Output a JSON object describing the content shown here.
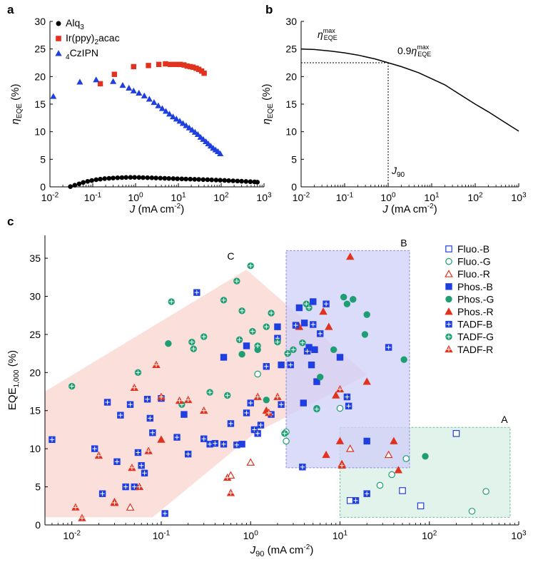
{
  "figure": {
    "panel_labels": [
      "a",
      "b",
      "c"
    ]
  },
  "colors": {
    "blue": "#1f3fe0",
    "red": "#e0321e",
    "green": "#1e9e73",
    "black": "#000000",
    "region_a": "#d9f0e6",
    "region_a_border": "#6fbf9a",
    "region_b": "#cfcff8",
    "region_b_border": "#8a8ae6",
    "region_c": "#f9d9d5"
  },
  "chart_data": [
    {
      "panel": "a",
      "type": "scatter",
      "xscale": "log",
      "xlim": [
        0.01,
        1000
      ],
      "ylim": [
        0,
        30
      ],
      "xticks": [
        "10^-2",
        "10^-1",
        "10^0",
        "10^1",
        "10^2",
        "10^3"
      ],
      "yticks": [
        0,
        5,
        10,
        15,
        20,
        25,
        30
      ],
      "xlabel": "J (mA cm^-2)",
      "ylabel": "η_EQE (%)",
      "legend_position": "top-left",
      "series": [
        {
          "name": "Alq3",
          "marker": "circle",
          "color": "#000000",
          "x": [
            0.03,
            0.038,
            0.048,
            0.06,
            0.076,
            0.095,
            0.12,
            0.15,
            0.19,
            0.24,
            0.3,
            0.38,
            0.48,
            0.6,
            0.76,
            0.95,
            1.2,
            1.5,
            1.9,
            2.4,
            3.0,
            3.8,
            4.8,
            6.0,
            7.6,
            9.5,
            12,
            15,
            19,
            24,
            30,
            38,
            48,
            60,
            76,
            95,
            120,
            150,
            190,
            240,
            300,
            380,
            480,
            600,
            700
          ],
          "y": [
            0.05,
            0.3,
            0.55,
            0.8,
            1.0,
            1.15,
            1.3,
            1.4,
            1.5,
            1.55,
            1.6,
            1.65,
            1.68,
            1.7,
            1.72,
            1.72,
            1.7,
            1.68,
            1.66,
            1.64,
            1.6,
            1.58,
            1.55,
            1.52,
            1.5,
            1.47,
            1.45,
            1.42,
            1.4,
            1.37,
            1.35,
            1.32,
            1.3,
            1.27,
            1.24,
            1.2,
            1.17,
            1.13,
            1.1,
            1.06,
            1.02,
            0.98,
            0.94,
            0.9,
            0.85
          ]
        },
        {
          "name": "Ir(ppy)2acac",
          "marker": "square",
          "color": "#e0321e",
          "x": [
            0.15,
            0.32,
            0.9,
            2.0,
            3.5,
            5.0,
            6.5,
            8.5,
            11,
            13.5,
            16,
            19,
            22,
            26,
            30,
            35,
            40
          ],
          "y": [
            18.7,
            20.4,
            21.8,
            22.0,
            22.2,
            22.3,
            22.2,
            22.2,
            22.2,
            22.1,
            21.9,
            21.8,
            21.7,
            21.5,
            21.3,
            21.0,
            20.6
          ]
        },
        {
          "name": "4CzIPN",
          "marker": "triangle",
          "color": "#1f3fe0",
          "x": [
            0.012,
            0.05,
            0.12,
            0.3,
            0.5,
            0.7,
            0.9,
            1.2,
            1.6,
            2.1,
            2.7,
            3.4,
            4.2,
            5.1,
            6.2,
            7.5,
            9.0,
            10.8,
            12.8,
            15.2,
            17.9,
            21.0,
            24.5,
            28.5,
            33,
            38,
            44,
            50,
            57,
            65,
            74,
            84,
            95
          ],
          "y": [
            16.4,
            19.0,
            19.4,
            19.1,
            18.4,
            17.9,
            17.4,
            17.0,
            16.5,
            15.9,
            15.3,
            14.7,
            14.2,
            13.7,
            13.2,
            12.7,
            12.3,
            11.9,
            11.5,
            11.1,
            10.7,
            10.3,
            9.9,
            9.5,
            9.0,
            8.6,
            8.2,
            7.8,
            7.4,
            7.0,
            6.7,
            6.4,
            6.0
          ]
        }
      ]
    },
    {
      "panel": "b",
      "type": "line",
      "xscale": "log",
      "xlim": [
        0.01,
        1000
      ],
      "ylim": [
        0,
        30
      ],
      "xticks": [
        "10^-2",
        "10^-1",
        "10^0",
        "10^1",
        "10^2",
        "10^3"
      ],
      "yticks": [
        0,
        5,
        10,
        15,
        20,
        25,
        30
      ],
      "xlabel": "J (mA cm^-2)",
      "ylabel": "η_EQE (%)",
      "series": [
        {
          "name": "η_EQE",
          "color": "#000000",
          "x": [
            0.01,
            0.02,
            0.05,
            0.1,
            0.2,
            0.5,
            1,
            2,
            5,
            10,
            20,
            50,
            100,
            200,
            500,
            1000
          ],
          "y": [
            25.0,
            24.9,
            24.6,
            24.3,
            23.9,
            23.2,
            22.5,
            21.8,
            20.7,
            19.6,
            18.5,
            16.5,
            15.0,
            13.6,
            11.6,
            10.1
          ]
        }
      ],
      "annotations": {
        "max_label": "η^max_EQE",
        "ninety_label": "0.9η^max_EQE",
        "j90_label": "J90",
        "j90_x": 1.0,
        "ninety_y": 22.5
      }
    },
    {
      "panel": "c",
      "type": "scatter",
      "xscale": "log",
      "xlim": [
        0.005,
        1000
      ],
      "ylim": [
        0,
        38
      ],
      "xticks": [
        "10^-2",
        "10^-1",
        "10^0",
        "10^1",
        "10^2",
        "10^3"
      ],
      "yticks": [
        0,
        5,
        10,
        15,
        20,
        25,
        30,
        35
      ],
      "xlabel": "J90 (mA cm^-2)",
      "ylabel": "EQE1,000 (%)",
      "legend_position": "top-right",
      "regions": [
        {
          "label": "A",
          "x": [
            10,
            800
          ],
          "y": [
            1.0,
            12.8
          ]
        },
        {
          "label": "B",
          "x": [
            2.5,
            60
          ],
          "y": [
            7.5,
            36.0
          ]
        },
        {
          "label": "C",
          "polygon_x": [
            0.005,
            0.005,
            0.9,
            20,
            1.1,
            0.08
          ],
          "polygon_y": [
            1.0,
            17.5,
            33.5,
            19.7,
            12.0,
            1.0
          ]
        }
      ],
      "series": [
        {
          "name": "Fluo.-B",
          "marker": "square-open",
          "color": "#1f3fe0",
          "x": [
            200,
            50,
            80,
            13
          ],
          "y": [
            12.0,
            4.5,
            2.5,
            3.2
          ]
        },
        {
          "name": "Fluo.-G",
          "marker": "circle-open",
          "color": "#1e9e73",
          "x": [
            1.2,
            2.5,
            2.5,
            10,
            28,
            38,
            55,
            300,
            430
          ],
          "y": [
            19.8,
            12.2,
            11.0,
            15.3,
            5.2,
            6.6,
            8.7,
            1.8,
            4.4
          ]
        },
        {
          "name": "Fluo.-R",
          "marker": "triangle-open",
          "color": "#e0321e",
          "x": [
            0.03,
            0.045,
            0.6,
            1.0,
            13,
            35
          ],
          "y": [
            3.0,
            2.3,
            6.5,
            8.2,
            10.0,
            9.2
          ]
        },
        {
          "name": "Phos.-B",
          "marker": "square",
          "color": "#1f3fe0",
          "x": [
            0.18,
            0.5,
            0.8,
            0.9,
            2.0,
            2.2,
            3.5,
            3.9,
            4.0,
            4.5,
            4.8,
            5.0,
            5.2,
            5.5,
            10,
            20
          ],
          "y": [
            14.5,
            22.0,
            10.6,
            23.5,
            26.0,
            21.0,
            28.5,
            16.0,
            26.5,
            23.3,
            21.0,
            29.3,
            23.0,
            18.8,
            22.0,
            11.0
          ]
        },
        {
          "name": "Phos.-G",
          "marker": "circle",
          "color": "#1e9e73",
          "x": [
            0.12,
            0.8,
            1.2,
            1.5,
            5.5,
            6.0,
            8.5,
            11,
            12,
            14,
            19,
            20,
            52,
            90
          ],
          "y": [
            23.8,
            22.4,
            23.0,
            16.4,
            15.3,
            19.4,
            23.0,
            29.9,
            29.0,
            29.6,
            25.0,
            27.6,
            21.7,
            9.0
          ]
        },
        {
          "name": "Phos.-R",
          "marker": "triangle",
          "color": "#e0321e",
          "x": [
            0.1,
            1.5,
            3.5,
            6.5,
            7.0,
            7.5,
            9.0,
            10,
            10.5,
            13,
            20,
            40,
            45
          ],
          "y": [
            11.2,
            15.0,
            26.0,
            28.0,
            9.2,
            26.0,
            17.0,
            11.0,
            8.0,
            35.2,
            18.8,
            11.0,
            7.2
          ]
        },
        {
          "name": "TADF-B",
          "marker": "square-cross",
          "color": "#1f3fe0",
          "x": [
            0.006,
            0.018,
            0.022,
            0.025,
            0.032,
            0.035,
            0.04,
            0.045,
            0.05,
            0.055,
            0.06,
            0.065,
            0.07,
            0.075,
            0.08,
            0.1,
            0.11,
            0.15,
            0.2,
            0.25,
            0.3,
            0.35,
            0.4,
            0.5,
            0.6,
            0.7,
            0.9,
            1.0,
            1.1,
            1.2,
            1.3,
            1.5,
            1.7,
            2.0,
            2.2,
            2.8,
            3.2,
            3.8,
            4.3,
            5.0,
            6.0,
            7.0,
            12,
            12.5,
            15,
            20,
            35
          ],
          "y": [
            11.2,
            10.0,
            4.1,
            16.1,
            8.3,
            14.4,
            5.0,
            15.8,
            5.0,
            9.5,
            7.8,
            6.8,
            16.5,
            14.0,
            12.1,
            16.6,
            1.5,
            11.5,
            9.3,
            30.5,
            11.3,
            10.6,
            10.7,
            10.6,
            13.3,
            10.5,
            14.7,
            16.0,
            12.5,
            12.0,
            13.1,
            20.8,
            14.5,
            24.5,
            15.8,
            21.0,
            26.2,
            7.6,
            22.8,
            26.3,
            25.1,
            29.0,
            16.8,
            15.6,
            3.2,
            4.1,
            23.3
          ]
        },
        {
          "name": "TADF-G",
          "marker": "circle-cross",
          "color": "#1e9e73",
          "x": [
            0.01,
            0.055,
            0.13,
            0.17,
            0.22,
            0.23,
            0.3,
            0.35,
            0.5,
            0.55,
            0.7,
            0.75,
            0.8,
            1.0,
            1.05,
            1.2,
            1.5,
            1.7,
            2.0,
            2.4,
            2.6,
            3.0,
            3.8,
            4.2,
            4.5,
            5.5
          ],
          "y": [
            18.2,
            20.0,
            29.3,
            15.8,
            24.0,
            23.1,
            24.7,
            17.4,
            29.5,
            17.0,
            32.0,
            24.3,
            28.1,
            34.0,
            25.4,
            23.5,
            26.0,
            27.8,
            24.0,
            12.0,
            22.5,
            23.0,
            23.9,
            29.0,
            28.5,
            15.2
          ]
        },
        {
          "name": "TADF-R",
          "marker": "triangle-cross",
          "color": "#e0321e",
          "x": [
            0.011,
            0.013,
            0.02,
            0.03,
            0.047,
            0.05,
            0.057,
            0.072,
            0.088,
            0.1,
            0.16,
            0.2,
            0.3,
            0.55,
            0.6,
            1.2,
            1.6,
            2.0,
            10,
            10.5
          ],
          "y": [
            2.3,
            0.9,
            9.1,
            2.9,
            7.5,
            18.0,
            5.0,
            9.7,
            21.0,
            16.8,
            16.3,
            16.4,
            15.0,
            6.2,
            4.2,
            16.8,
            14.7,
            16.8,
            17.8,
            7.8
          ]
        }
      ]
    }
  ]
}
